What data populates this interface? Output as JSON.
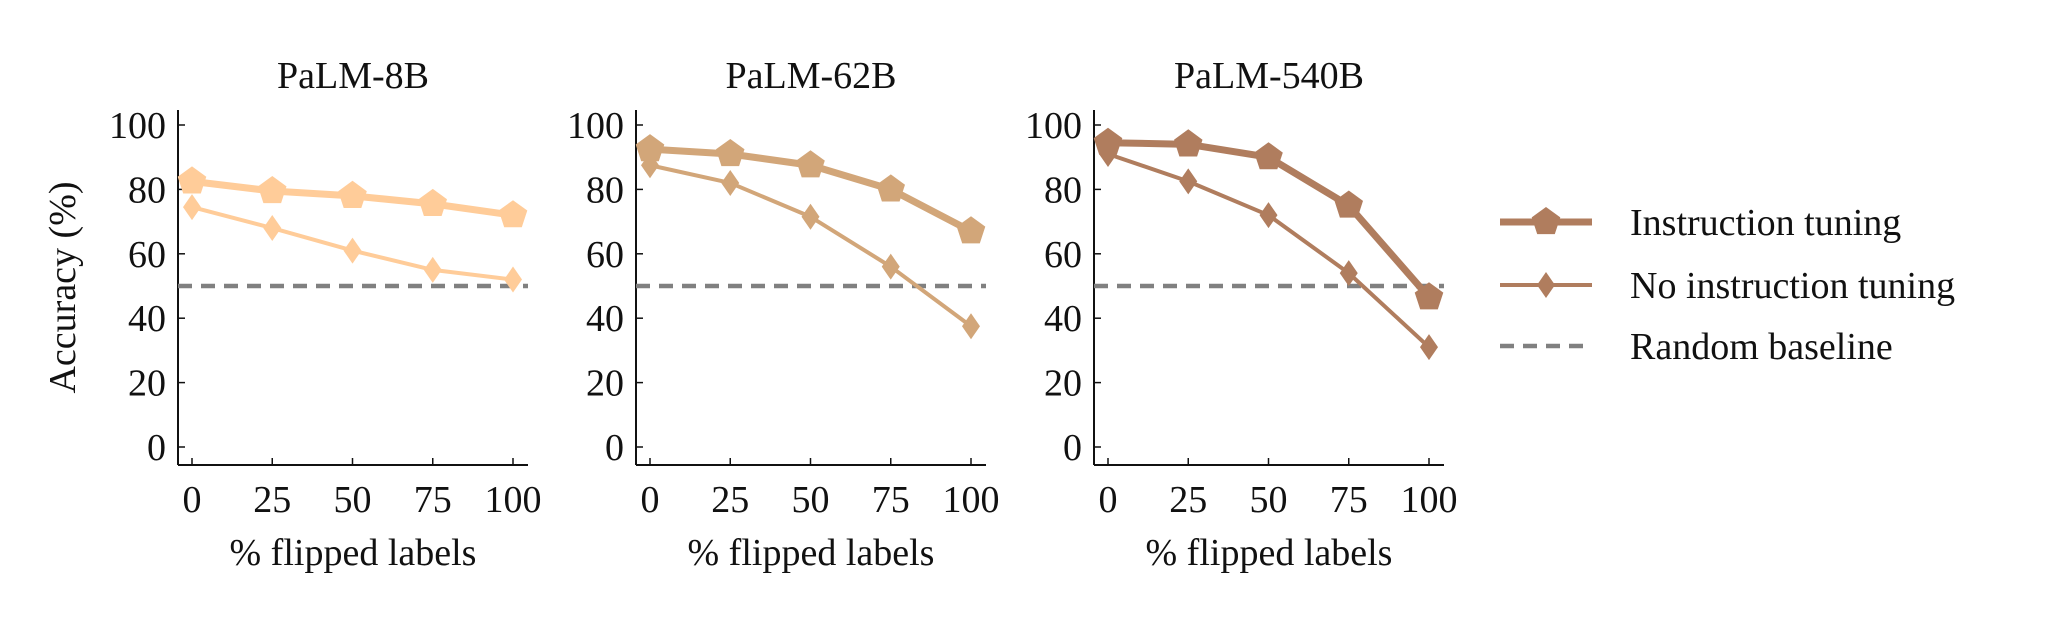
{
  "legend": {
    "position": "right",
    "items": [
      {
        "label": "Instruction tuning",
        "style": "thick-line-pentagon"
      },
      {
        "label": "No instruction tuning",
        "style": "thin-line-diamond"
      },
      {
        "label": "Random baseline",
        "style": "dashed-gray"
      }
    ]
  },
  "colors": {
    "panel_colors": [
      "#FFCC99",
      "#D2A679",
      "#B07D5E"
    ],
    "baseline": "#808080",
    "axis": "#111111"
  },
  "chart_data": [
    {
      "type": "line",
      "title": "PaLM-8B",
      "xlabel": "% flipped labels",
      "ylabel": "Accuracy (%)",
      "x": [
        0,
        25,
        50,
        75,
        100
      ],
      "xticks": [
        "0",
        "25",
        "50",
        "75",
        "100"
      ],
      "yticks": [
        "0",
        "20",
        "40",
        "60",
        "80",
        "100"
      ],
      "xlim": [
        0,
        100
      ],
      "ylim": [
        0,
        100
      ],
      "grid": false,
      "baseline": 50,
      "series": [
        {
          "name": "Instruction tuning",
          "values": [
            82.5,
            79.5,
            78,
            75.5,
            72
          ]
        },
        {
          "name": "No instruction tuning",
          "values": [
            74.5,
            68,
            61,
            55,
            52
          ]
        }
      ]
    },
    {
      "type": "line",
      "title": "PaLM-62B",
      "xlabel": "% flipped labels",
      "ylabel": "",
      "x": [
        0,
        25,
        50,
        75,
        100
      ],
      "xticks": [
        "0",
        "25",
        "50",
        "75",
        "100"
      ],
      "yticks": [
        "0",
        "20",
        "40",
        "60",
        "80",
        "100"
      ],
      "xlim": [
        0,
        100
      ],
      "ylim": [
        0,
        100
      ],
      "grid": false,
      "baseline": 50,
      "series": [
        {
          "name": "Instruction tuning",
          "values": [
            92.5,
            91,
            87.5,
            80,
            67
          ]
        },
        {
          "name": "No instruction tuning",
          "values": [
            87.5,
            82,
            71.5,
            56,
            37.5
          ]
        }
      ]
    },
    {
      "type": "line",
      "title": "PaLM-540B",
      "xlabel": "% flipped labels",
      "ylabel": "",
      "x": [
        0,
        25,
        50,
        75,
        100
      ],
      "xticks": [
        "0",
        "25",
        "50",
        "75",
        "100"
      ],
      "yticks": [
        "0",
        "20",
        "40",
        "60",
        "80",
        "100"
      ],
      "xlim": [
        0,
        100
      ],
      "ylim": [
        0,
        100
      ],
      "grid": false,
      "baseline": 50,
      "series": [
        {
          "name": "Instruction tuning",
          "values": [
            94.5,
            94,
            90,
            75,
            46.5
          ]
        },
        {
          "name": "No instruction tuning",
          "values": [
            91,
            82.5,
            72,
            54,
            31
          ]
        }
      ]
    }
  ]
}
